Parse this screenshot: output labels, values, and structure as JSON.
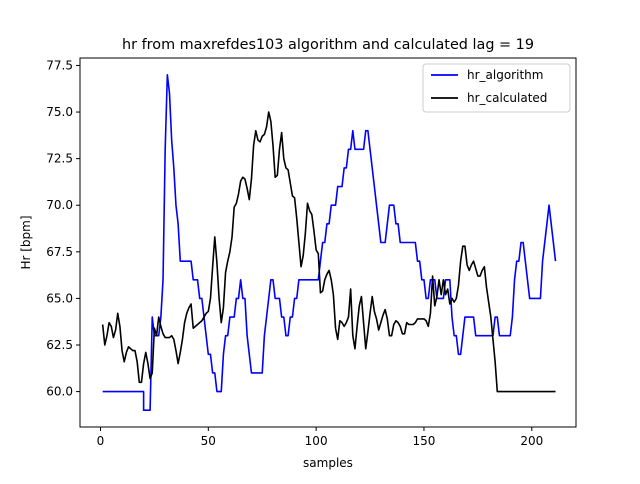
{
  "chart_data": {
    "type": "line",
    "title": "hr from maxrefdes103 algorithm and calculated lag = 19",
    "xlabel": "samples",
    "ylabel": "Hr [bpm]",
    "xlim": [
      -9.5,
      220.5
    ],
    "ylim": [
      58.1,
      77.9
    ],
    "x_ticks": [
      0,
      50,
      100,
      150,
      200
    ],
    "y_ticks": [
      60.0,
      62.5,
      65.0,
      67.5,
      70.0,
      72.5,
      75.0,
      77.5
    ],
    "x_tick_labels": [
      "0",
      "50",
      "100",
      "150",
      "200"
    ],
    "y_tick_labels": [
      "60.0",
      "62.5",
      "65.0",
      "67.5",
      "70.0",
      "72.5",
      "75.0",
      "77.5"
    ],
    "grid": false,
    "legend_position": "top-right",
    "series": [
      {
        "name": "hr_algorithm",
        "color": "#0000ff",
        "points": [
          [
            1,
            60
          ],
          [
            20,
            60
          ],
          [
            20,
            59
          ],
          [
            23,
            59
          ],
          [
            24,
            64
          ],
          [
            25,
            63
          ],
          [
            27,
            63
          ],
          [
            28,
            64
          ],
          [
            29,
            66
          ],
          [
            30,
            73
          ],
          [
            31,
            77
          ],
          [
            32,
            76
          ],
          [
            33,
            73.5
          ],
          [
            34,
            72
          ],
          [
            35,
            70
          ],
          [
            36,
            69
          ],
          [
            37,
            67
          ],
          [
            42,
            67
          ],
          [
            43,
            66
          ],
          [
            45,
            66
          ],
          [
            46,
            65
          ],
          [
            47,
            65
          ],
          [
            48,
            64
          ],
          [
            49,
            63
          ],
          [
            50,
            62
          ],
          [
            51,
            62
          ],
          [
            52,
            61
          ],
          [
            53,
            61
          ],
          [
            54,
            60
          ],
          [
            56,
            60
          ],
          [
            57,
            62
          ],
          [
            58,
            63
          ],
          [
            59,
            63
          ],
          [
            60,
            64
          ],
          [
            62,
            64
          ],
          [
            63,
            65
          ],
          [
            64,
            65
          ],
          [
            65,
            66
          ],
          [
            66,
            65
          ],
          [
            67,
            65
          ],
          [
            68,
            63
          ],
          [
            69,
            62
          ],
          [
            70,
            61
          ],
          [
            75,
            61
          ],
          [
            76,
            63
          ],
          [
            77,
            64
          ],
          [
            78,
            65
          ],
          [
            79,
            66
          ],
          [
            80,
            66
          ],
          [
            81,
            65
          ],
          [
            83,
            65
          ],
          [
            84,
            64
          ],
          [
            85,
            64
          ],
          [
            86,
            63
          ],
          [
            87,
            63
          ],
          [
            88,
            64
          ],
          [
            89,
            64
          ],
          [
            90,
            65
          ],
          [
            91,
            65
          ],
          [
            92,
            66
          ],
          [
            101,
            66
          ],
          [
            102,
            67
          ],
          [
            103,
            68
          ],
          [
            104,
            68
          ],
          [
            105,
            69
          ],
          [
            106,
            69
          ],
          [
            107,
            70
          ],
          [
            109,
            70
          ],
          [
            110,
            71
          ],
          [
            112,
            71
          ],
          [
            113,
            72
          ],
          [
            114,
            72
          ],
          [
            115,
            73
          ],
          [
            116,
            73
          ],
          [
            117,
            74
          ],
          [
            118,
            73
          ],
          [
            122,
            73
          ],
          [
            123,
            74
          ],
          [
            124,
            74
          ],
          [
            125,
            73
          ],
          [
            126,
            72
          ],
          [
            127,
            71
          ],
          [
            128,
            70
          ],
          [
            129,
            69
          ],
          [
            130,
            68
          ],
          [
            132,
            68
          ],
          [
            133,
            69
          ],
          [
            134,
            70
          ],
          [
            136,
            70
          ],
          [
            137,
            69
          ],
          [
            138,
            69
          ],
          [
            139,
            68
          ],
          [
            146,
            68
          ],
          [
            147,
            67
          ],
          [
            148,
            67
          ],
          [
            149,
            66
          ],
          [
            150,
            66
          ],
          [
            151,
            65
          ],
          [
            152,
            65
          ],
          [
            153,
            66
          ],
          [
            155,
            66
          ],
          [
            156,
            65
          ],
          [
            159,
            65
          ],
          [
            160,
            66
          ],
          [
            162,
            66
          ],
          [
            163,
            64
          ],
          [
            164,
            63
          ],
          [
            165,
            63
          ],
          [
            166,
            62
          ],
          [
            167,
            62
          ],
          [
            168,
            63
          ],
          [
            169,
            64
          ],
          [
            173,
            64
          ],
          [
            174,
            63
          ],
          [
            182,
            63
          ],
          [
            183,
            64
          ],
          [
            184,
            64
          ],
          [
            185,
            63
          ],
          [
            190,
            63
          ],
          [
            191,
            64
          ],
          [
            192,
            66
          ],
          [
            193,
            67
          ],
          [
            194,
            67
          ],
          [
            195,
            68
          ],
          [
            196,
            68
          ],
          [
            197,
            67
          ],
          [
            198,
            66
          ],
          [
            199,
            65
          ],
          [
            204,
            65
          ],
          [
            205,
            67
          ],
          [
            206,
            68
          ],
          [
            207,
            69
          ],
          [
            208,
            70
          ],
          [
            209,
            69
          ],
          [
            210,
            68
          ],
          [
            211,
            67
          ]
        ]
      },
      {
        "name": "hr_calculated",
        "color": "#000000",
        "points": [
          [
            1,
            63.6
          ],
          [
            2,
            62.5
          ],
          [
            3,
            63.0
          ],
          [
            4,
            63.7
          ],
          [
            5,
            63.5
          ],
          [
            6,
            62.9
          ],
          [
            7,
            63.3
          ],
          [
            8,
            64.2
          ],
          [
            9,
            63.5
          ],
          [
            10,
            62.2
          ],
          [
            11,
            61.6
          ],
          [
            12,
            62.1
          ],
          [
            13,
            62.4
          ],
          [
            14,
            62.3
          ],
          [
            15,
            62.2
          ],
          [
            16,
            62.2
          ],
          [
            17,
            61.6
          ],
          [
            18,
            60.5
          ],
          [
            19,
            60.5
          ],
          [
            20,
            61.5
          ],
          [
            21,
            62.1
          ],
          [
            22,
            61.5
          ],
          [
            23,
            60.7
          ],
          [
            24,
            61.0
          ],
          [
            25,
            63.4
          ],
          [
            26,
            63.0
          ],
          [
            27,
            64.0
          ],
          [
            28,
            63.5
          ],
          [
            29,
            63.1
          ],
          [
            30,
            62.9
          ],
          [
            31,
            62.9
          ],
          [
            32,
            62.9
          ],
          [
            33,
            63.0
          ],
          [
            34,
            62.8
          ],
          [
            35,
            62.2
          ],
          [
            36,
            61.5
          ],
          [
            37,
            62.1
          ],
          [
            38,
            62.8
          ],
          [
            39,
            63.7
          ],
          [
            40,
            64.2
          ],
          [
            41,
            64.5
          ],
          [
            42,
            64.7
          ],
          [
            43,
            63.4
          ],
          [
            44,
            63.5
          ],
          [
            45,
            63.6
          ],
          [
            46,
            63.7
          ],
          [
            47,
            63.8
          ],
          [
            48,
            64.0
          ],
          [
            49,
            64.2
          ],
          [
            50,
            64.3
          ],
          [
            51,
            65.0
          ],
          [
            52,
            66.7
          ],
          [
            53,
            68.3
          ],
          [
            54,
            66.9
          ],
          [
            55,
            65.0
          ],
          [
            56,
            63.7
          ],
          [
            57,
            64.5
          ],
          [
            58,
            66.4
          ],
          [
            59,
            67.0
          ],
          [
            60,
            67.5
          ],
          [
            61,
            68.3
          ],
          [
            62,
            69.9
          ],
          [
            63,
            70.1
          ],
          [
            64,
            70.6
          ],
          [
            65,
            71.3
          ],
          [
            66,
            71.5
          ],
          [
            67,
            71.4
          ],
          [
            68,
            70.9
          ],
          [
            69,
            70.3
          ],
          [
            70,
            71.4
          ],
          [
            71,
            73.2
          ],
          [
            72,
            74.0
          ],
          [
            73,
            73.5
          ],
          [
            74,
            73.4
          ],
          [
            75,
            73.7
          ],
          [
            76,
            73.8
          ],
          [
            77,
            74.2
          ],
          [
            78,
            75.0
          ],
          [
            79,
            74.5
          ],
          [
            80,
            73.2
          ],
          [
            81,
            71.5
          ],
          [
            82,
            71.6
          ],
          [
            83,
            73.0
          ],
          [
            84,
            73.9
          ],
          [
            85,
            72.5
          ],
          [
            86,
            72.0
          ],
          [
            87,
            71.9
          ],
          [
            88,
            71.2
          ],
          [
            89,
            70.5
          ],
          [
            90,
            70.4
          ],
          [
            91,
            69.3
          ],
          [
            92,
            68.0
          ],
          [
            93,
            66.7
          ],
          [
            94,
            67.3
          ],
          [
            95,
            68.5
          ],
          [
            96,
            70.1
          ],
          [
            97,
            69.7
          ],
          [
            98,
            69.5
          ],
          [
            99,
            68.6
          ],
          [
            100,
            67.6
          ],
          [
            101,
            67.4
          ],
          [
            102,
            65.3
          ],
          [
            103,
            65.4
          ],
          [
            104,
            66.0
          ],
          [
            105,
            66.3
          ],
          [
            106,
            66.5
          ],
          [
            107,
            66.0
          ],
          [
            108,
            65.2
          ],
          [
            109,
            63.4
          ],
          [
            110,
            62.8
          ],
          [
            111,
            63.8
          ],
          [
            112,
            63.7
          ],
          [
            113,
            63.5
          ],
          [
            114,
            63.7
          ],
          [
            115,
            64.0
          ],
          [
            116,
            65.5
          ],
          [
            117,
            63.0
          ],
          [
            118,
            62.3
          ],
          [
            119,
            63.5
          ],
          [
            120,
            64.6
          ],
          [
            121,
            65.1
          ],
          [
            122,
            63.7
          ],
          [
            123,
            62.3
          ],
          [
            124,
            63.2
          ],
          [
            125,
            64.2
          ],
          [
            126,
            65.1
          ],
          [
            127,
            64.3
          ],
          [
            128,
            63.9
          ],
          [
            129,
            63.3
          ],
          [
            130,
            63.7
          ],
          [
            131,
            64.1
          ],
          [
            132,
            64.4
          ],
          [
            133,
            63.9
          ],
          [
            134,
            63.0
          ],
          [
            135,
            63.0
          ],
          [
            136,
            63.6
          ],
          [
            137,
            63.8
          ],
          [
            138,
            63.7
          ],
          [
            139,
            63.5
          ],
          [
            140,
            63.1
          ],
          [
            141,
            63.1
          ],
          [
            142,
            63.7
          ],
          [
            143,
            63.6
          ],
          [
            144,
            63.6
          ],
          [
            145,
            63.6
          ],
          [
            146,
            63.7
          ],
          [
            147,
            63.9
          ],
          [
            148,
            63.9
          ],
          [
            149,
            63.9
          ],
          [
            150,
            63.9
          ],
          [
            151,
            63.8
          ],
          [
            152,
            63.5
          ],
          [
            153,
            64.2
          ],
          [
            154,
            66.2
          ],
          [
            155,
            64.6
          ],
          [
            156,
            65.1
          ],
          [
            157,
            66.0
          ],
          [
            158,
            65.2
          ],
          [
            159,
            66.0
          ],
          [
            160,
            65.2
          ],
          [
            161,
            65.5
          ],
          [
            162,
            64.7
          ],
          [
            163,
            65.0
          ],
          [
            164,
            64.8
          ],
          [
            165,
            65.0
          ],
          [
            166,
            65.7
          ],
          [
            167,
            67.0
          ],
          [
            168,
            67.8
          ],
          [
            169,
            67.8
          ],
          [
            170,
            66.8
          ],
          [
            171,
            66.5
          ],
          [
            172,
            66.8
          ],
          [
            173,
            67.0
          ],
          [
            174,
            66.6
          ],
          [
            175,
            66.2
          ],
          [
            176,
            66.2
          ],
          [
            177,
            66.5
          ],
          [
            178,
            66.7
          ],
          [
            179,
            65.6
          ],
          [
            180,
            64.8
          ],
          [
            181,
            64.0
          ],
          [
            182,
            62.8
          ],
          [
            183,
            61.6
          ],
          [
            184,
            60.0
          ],
          [
            185,
            60.0
          ],
          [
            211,
            60.0
          ]
        ]
      }
    ]
  }
}
